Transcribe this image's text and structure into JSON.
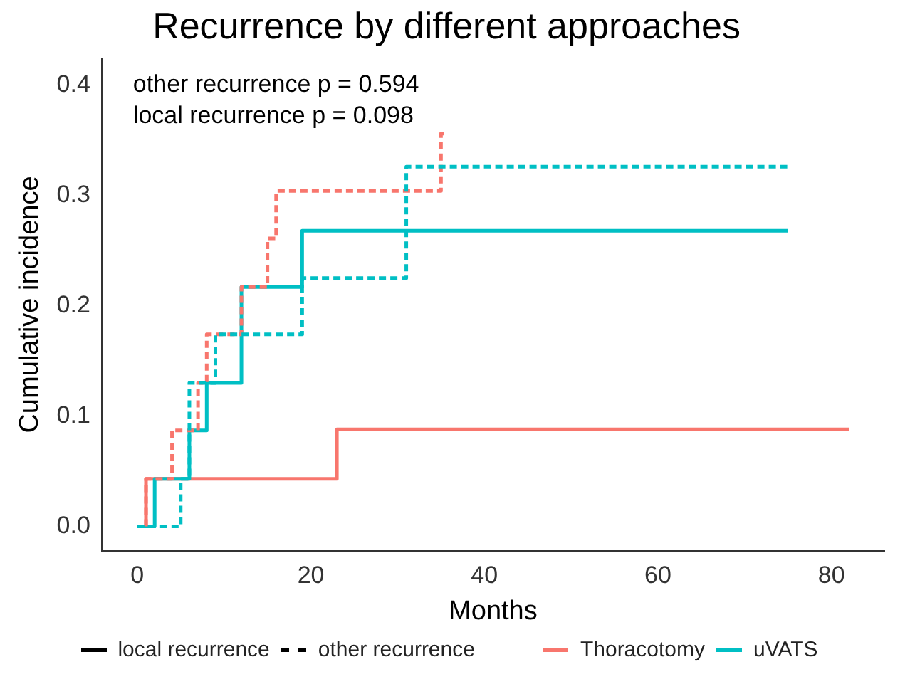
{
  "chart_data": {
    "type": "step",
    "title": "Recurrence by different approaches",
    "xlabel": "Months",
    "ylabel": "Cumulative incidence",
    "annotations": [
      "other recurrence p = 0.594",
      "local recurrence p = 0.098",
      "local recurrence",
      "other recurrence"
    ],
    "series": [
      {
        "name": "Thoracotomy",
        "color": "#f8766d",
        "line_style": "solid",
        "x": [
          0,
          1,
          23,
          82
        ],
        "values": [
          0,
          0.043,
          0.088,
          0.088
        ]
      },
      {
        "name": "uVATS",
        "color": "#00bfc4",
        "line_style": "solid",
        "x": [
          0,
          2,
          6,
          8,
          12,
          19,
          75
        ],
        "values": [
          0,
          0.043,
          0.087,
          0.13,
          0.217,
          0.268,
          0.268
        ]
      },
      {
        "color": "#f8766d",
        "line_style": "dashed",
        "x": [
          1,
          1,
          4,
          7,
          8,
          12,
          15,
          16,
          35,
          35.5
        ],
        "values": [
          0,
          0.043,
          0.087,
          0.13,
          0.174,
          0.217,
          0.261,
          0.304,
          0.356,
          0.356
        ]
      },
      {
        "color": "#00bfc4",
        "line_style": "dashed",
        "x": [
          0,
          5,
          6,
          9,
          19,
          31,
          75
        ],
        "values": [
          0,
          0.043,
          0.13,
          0.174,
          0.225,
          0.326,
          0.326
        ]
      }
    ],
    "xlim": [
      -4.1,
      86.1
    ],
    "xticks": [
      0,
      20,
      40,
      60,
      80
    ],
    "ylim": [
      -0.022,
      0.424
    ],
    "yticks": [
      {
        "value": 0,
        "label": "0.0"
      },
      {
        "value": 0.1,
        "label": "0.1"
      },
      {
        "value": 0.2,
        "label": "0.2"
      },
      {
        "value": 0.3,
        "label": "0.3"
      },
      {
        "value": 0.4,
        "label": "0.4"
      }
    ],
    "grid": false,
    "legend": "bottom",
    "marker": "none"
  }
}
